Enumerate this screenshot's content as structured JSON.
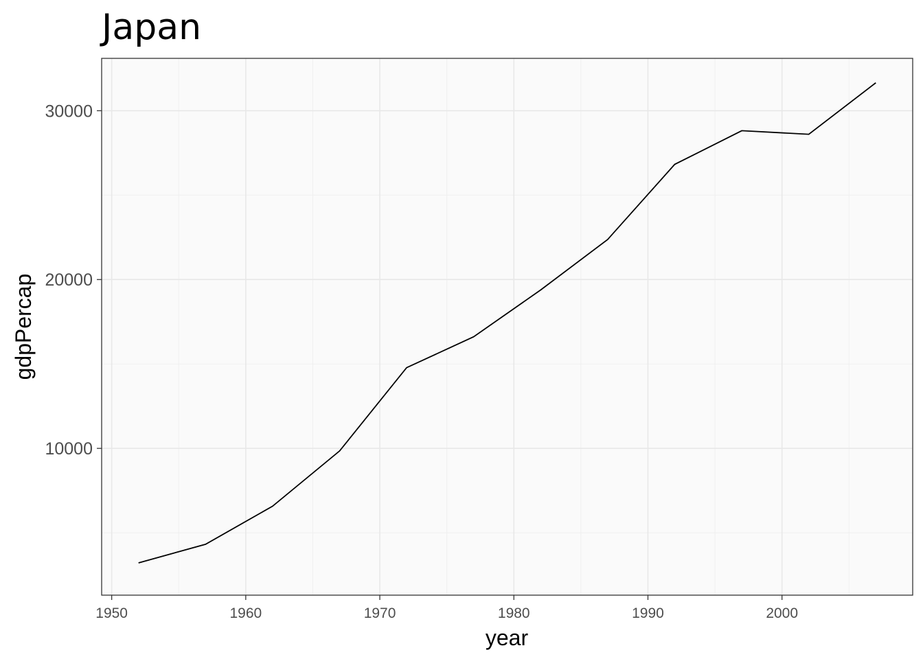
{
  "chart_data": {
    "type": "line",
    "title": "Japan",
    "xlabel": "year",
    "ylabel": "gdpPercap",
    "xlim": [
      1949.25,
      2009.75
    ],
    "ylim": [
      1306,
      33102
    ],
    "x_ticks": [
      1950,
      1960,
      1970,
      1980,
      1990,
      2000
    ],
    "y_ticks": [
      10000,
      20000,
      30000
    ],
    "grid": true,
    "legend": "none",
    "background": "#fafafa",
    "line_color": "#000000",
    "series": [
      {
        "x": [
          1952,
          1957,
          1962,
          1967,
          1972,
          1977,
          1982,
          1987,
          1992,
          1997,
          2002,
          2007
        ],
        "y": [
          3217,
          4318,
          6577,
          9847,
          14779,
          16610,
          19384,
          22376,
          26825,
          28817,
          28605,
          31656
        ]
      }
    ]
  }
}
